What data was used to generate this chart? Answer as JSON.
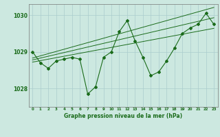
{
  "x": [
    0,
    1,
    2,
    3,
    4,
    5,
    6,
    7,
    8,
    9,
    10,
    11,
    12,
    13,
    14,
    15,
    16,
    17,
    18,
    19,
    20,
    21,
    22,
    23
  ],
  "y_main": [
    1029.0,
    1028.7,
    1028.55,
    1028.75,
    1028.8,
    1028.85,
    1028.8,
    1027.85,
    1028.05,
    1028.85,
    1029.0,
    1029.55,
    1029.85,
    1029.3,
    1028.85,
    1028.35,
    1028.45,
    1028.75,
    1029.1,
    1029.5,
    1029.65,
    1029.75,
    1030.05,
    1029.75
  ],
  "y_trend1": [
    1028.72,
    1028.76,
    1028.8,
    1028.84,
    1028.88,
    1028.92,
    1028.96,
    1029.0,
    1029.04,
    1029.08,
    1029.12,
    1029.16,
    1029.2,
    1029.24,
    1029.28,
    1029.32,
    1029.36,
    1029.4,
    1029.44,
    1029.48,
    1029.52,
    1029.56,
    1029.6,
    1029.64
  ],
  "y_trend2": [
    1028.78,
    1028.83,
    1028.88,
    1028.93,
    1028.98,
    1029.03,
    1029.08,
    1029.13,
    1029.18,
    1029.23,
    1029.28,
    1029.33,
    1029.38,
    1029.43,
    1029.48,
    1029.53,
    1029.58,
    1029.63,
    1029.68,
    1029.73,
    1029.78,
    1029.83,
    1029.88,
    1029.93
  ],
  "y_trend3": [
    1028.83,
    1028.89,
    1028.95,
    1029.01,
    1029.07,
    1029.13,
    1029.19,
    1029.25,
    1029.31,
    1029.37,
    1029.43,
    1029.49,
    1029.55,
    1029.61,
    1029.67,
    1029.73,
    1029.79,
    1029.85,
    1029.91,
    1029.97,
    1030.03,
    1030.09,
    1030.15,
    1030.21
  ],
  "line_color": "#1a6b1a",
  "bg_color": "#cce8e0",
  "grid_color": "#aacccc",
  "title": "Graphe pression niveau de la mer (hPa)",
  "ylim": [
    1027.5,
    1030.3
  ],
  "yticks": [
    1028,
    1029,
    1030
  ],
  "xtick_labels": [
    "0",
    "1",
    "2",
    "3",
    "4",
    "5",
    "6",
    "7",
    "8",
    "9",
    "10",
    "11",
    "12",
    "13",
    "14",
    "15",
    "16",
    "17",
    "18",
    "19",
    "20",
    "21",
    "22",
    "23"
  ]
}
